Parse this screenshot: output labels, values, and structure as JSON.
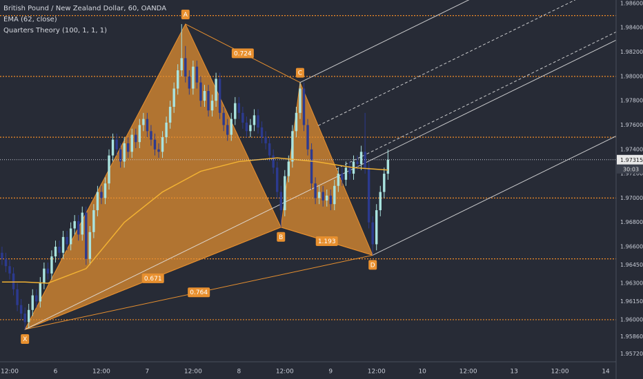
{
  "chart_data": {
    "type": "candlestick",
    "title": "British Pound / New Zealand Dollar, 60, OANDA",
    "indicators": [
      "EMA (62, close)",
      "Quarters Theory (100, 1, 1, 1)"
    ],
    "up_color": "#a9e3df",
    "down_color": "#2c3a8f",
    "background": "#272b36",
    "xlim": [
      -2.53,
      158.7
    ],
    "ylim": [
      1.95654,
      1.98628
    ],
    "xticks": [
      {
        "value": 0,
        "label": "12:00"
      },
      {
        "value": 12,
        "label": "6"
      },
      {
        "value": 24,
        "label": "12:00"
      },
      {
        "value": 36,
        "label": "7"
      },
      {
        "value": 48,
        "label": "12:00"
      },
      {
        "value": 60,
        "label": "8"
      },
      {
        "value": 72,
        "label": "12:00"
      },
      {
        "value": 84,
        "label": "9"
      },
      {
        "value": 96,
        "label": "12:00"
      },
      {
        "value": 108,
        "label": "10"
      },
      {
        "value": 120,
        "label": "12:00"
      },
      {
        "value": 132,
        "label": "13"
      },
      {
        "value": 144,
        "label": "12:00"
      },
      {
        "value": 156,
        "label": "14"
      }
    ],
    "yticks": [
      {
        "value": 1.986,
        "label": "1.98600"
      },
      {
        "value": 1.984,
        "label": "1.98400"
      },
      {
        "value": 1.982,
        "label": "1.98200"
      },
      {
        "value": 1.98,
        "label": "1.98000"
      },
      {
        "value": 1.978,
        "label": "1.97800"
      },
      {
        "value": 1.976,
        "label": "1.97600"
      },
      {
        "value": 1.974,
        "label": "1.97400"
      },
      {
        "value": 1.972,
        "label": "1.97200"
      },
      {
        "value": 1.97,
        "label": "1.97000"
      },
      {
        "value": 1.968,
        "label": "1.96800"
      },
      {
        "value": 1.966,
        "label": "1.96600"
      },
      {
        "value": 1.9645,
        "label": "1.96450"
      },
      {
        "value": 1.963,
        "label": "1.96300"
      },
      {
        "value": 1.9615,
        "label": "1.96150"
      },
      {
        "value": 1.96,
        "label": "1.96000"
      },
      {
        "value": 1.9586,
        "label": "1.95860"
      },
      {
        "value": 1.9572,
        "label": "1.95720"
      }
    ],
    "x": [
      -2,
      -1,
      0,
      1,
      2,
      3,
      4,
      5,
      6,
      7,
      8,
      9,
      10,
      11,
      12,
      13,
      14,
      15,
      16,
      17,
      18,
      19,
      20,
      21,
      22,
      23,
      24,
      25,
      26,
      27,
      28,
      29,
      30,
      31,
      32,
      33,
      34,
      35,
      36,
      37,
      38,
      39,
      40,
      41,
      42,
      43,
      44,
      45,
      46,
      47,
      48,
      49,
      50,
      51,
      52,
      53,
      54,
      55,
      56,
      57,
      58,
      59,
      60,
      61,
      62,
      63,
      64,
      65,
      66,
      67,
      68,
      69,
      70,
      71,
      72,
      73,
      74,
      75,
      76,
      77,
      78,
      79,
      80,
      81,
      82,
      83,
      84,
      85,
      86,
      87,
      88,
      89,
      90,
      91,
      92,
      93,
      94,
      95,
      96,
      97,
      98,
      99
    ],
    "open": [
      1.9655,
      1.965,
      1.9644,
      1.9638,
      1.9625,
      1.9612,
      1.9605,
      1.9598,
      1.9608,
      1.962,
      1.9615,
      1.963,
      1.9642,
      1.9638,
      1.9652,
      1.966,
      1.9655,
      1.9668,
      1.9662,
      1.9675,
      1.9681,
      1.967,
      1.9688,
      1.965,
      1.9672,
      1.969,
      1.9705,
      1.97,
      1.9712,
      1.9735,
      1.9748,
      1.974,
      1.973,
      1.9745,
      1.9738,
      1.9752,
      1.9746,
      1.976,
      1.9765,
      1.9755,
      1.9748,
      1.974,
      1.9738,
      1.975,
      1.9762,
      1.9775,
      1.979,
      1.9805,
      1.9815,
      1.98,
      1.979,
      1.9808,
      1.9795,
      1.978,
      1.9788,
      1.9772,
      1.978,
      1.9798,
      1.977,
      1.976,
      1.9752,
      1.9765,
      1.9778,
      1.977,
      1.9762,
      1.9755,
      1.976,
      1.9768,
      1.9758,
      1.975,
      1.9745,
      1.9735,
      1.9725,
      1.9705,
      1.969,
      1.9718,
      1.973,
      1.9755,
      1.977,
      1.979,
      1.976,
      1.974,
      1.9712,
      1.97,
      1.9705,
      1.9698,
      1.9702,
      1.9695,
      1.971,
      1.972,
      1.9715,
      1.9725,
      1.972,
      1.973,
      1.9728,
      1.9738,
      1.9725,
      1.968,
      1.9662,
      1.969,
      1.9705,
      1.972
    ],
    "high": [
      1.966,
      1.9655,
      1.9649,
      1.9643,
      1.963,
      1.9617,
      1.961,
      1.9613,
      1.9625,
      1.9625,
      1.9635,
      1.9647,
      1.9647,
      1.9657,
      1.9665,
      1.9665,
      1.9673,
      1.9673,
      1.968,
      1.9686,
      1.9686,
      1.9693,
      1.9693,
      1.9677,
      1.9695,
      1.971,
      1.971,
      1.9717,
      1.974,
      1.9753,
      1.9753,
      1.9745,
      1.975,
      1.975,
      1.9757,
      1.9757,
      1.9765,
      1.977,
      1.977,
      1.976,
      1.9753,
      1.9745,
      1.9755,
      1.9767,
      1.978,
      1.9795,
      1.981,
      1.9843,
      1.9825,
      1.9805,
      1.9813,
      1.9813,
      1.98,
      1.9793,
      1.9793,
      1.9785,
      1.9803,
      1.9803,
      1.9775,
      1.9765,
      1.977,
      1.9783,
      1.9783,
      1.9775,
      1.9767,
      1.9765,
      1.9773,
      1.9773,
      1.9763,
      1.9755,
      1.975,
      1.974,
      1.973,
      1.971,
      1.9723,
      1.9735,
      1.976,
      1.9775,
      1.9795,
      1.9795,
      1.9765,
      1.9745,
      1.9717,
      1.971,
      1.971,
      1.9707,
      1.9707,
      1.9715,
      1.9725,
      1.9725,
      1.973,
      1.973,
      1.9735,
      1.9735,
      1.9743,
      1.977,
      1.973,
      1.9685,
      1.9695,
      1.971,
      1.9725,
      1.974
    ],
    "low": [
      1.9645,
      1.9639,
      1.9633,
      1.962,
      1.9607,
      1.96,
      1.9592,
      1.9593,
      1.9603,
      1.961,
      1.961,
      1.9625,
      1.9633,
      1.9633,
      1.9647,
      1.965,
      1.965,
      1.9657,
      1.9657,
      1.967,
      1.9665,
      1.9665,
      1.9645,
      1.9645,
      1.9667,
      1.9685,
      1.9695,
      1.9695,
      1.9707,
      1.973,
      1.9735,
      1.9725,
      1.9725,
      1.9733,
      1.9733,
      1.9741,
      1.9741,
      1.9755,
      1.975,
      1.9743,
      1.9735,
      1.9733,
      1.9733,
      1.9745,
      1.9757,
      1.977,
      1.9785,
      1.98,
      1.9795,
      1.9785,
      1.9785,
      1.979,
      1.9775,
      1.9775,
      1.9767,
      1.9767,
      1.9775,
      1.9765,
      1.9755,
      1.9747,
      1.9747,
      1.976,
      1.9765,
      1.9757,
      1.975,
      1.975,
      1.9755,
      1.9753,
      1.9745,
      1.974,
      1.973,
      1.972,
      1.97,
      1.9676,
      1.9685,
      1.9713,
      1.9725,
      1.975,
      1.9765,
      1.9755,
      1.9735,
      1.9707,
      1.9695,
      1.9695,
      1.9693,
      1.9693,
      1.969,
      1.969,
      1.9705,
      1.971,
      1.971,
      1.9715,
      1.9715,
      1.9723,
      1.9723,
      1.972,
      1.9675,
      1.9653,
      1.9657,
      1.9685,
      1.97,
      1.9715
    ],
    "close": [
      1.965,
      1.9644,
      1.9638,
      1.9625,
      1.9612,
      1.9605,
      1.9598,
      1.9608,
      1.962,
      1.9615,
      1.963,
      1.9642,
      1.9638,
      1.9652,
      1.966,
      1.9655,
      1.9668,
      1.9662,
      1.9675,
      1.9681,
      1.967,
      1.9688,
      1.965,
      1.9672,
      1.969,
      1.9705,
      1.97,
      1.9712,
      1.9735,
      1.9748,
      1.974,
      1.973,
      1.9745,
      1.9738,
      1.9752,
      1.9746,
      1.976,
      1.9765,
      1.9755,
      1.9748,
      1.974,
      1.9738,
      1.975,
      1.9762,
      1.9775,
      1.979,
      1.9805,
      1.9815,
      1.98,
      1.979,
      1.9808,
      1.9795,
      1.978,
      1.9788,
      1.9772,
      1.978,
      1.9798,
      1.977,
      1.976,
      1.9752,
      1.9765,
      1.9778,
      1.977,
      1.9762,
      1.9755,
      1.976,
      1.9768,
      1.9758,
      1.975,
      1.9745,
      1.9735,
      1.9725,
      1.9705,
      1.969,
      1.9718,
      1.973,
      1.9755,
      1.977,
      1.979,
      1.976,
      1.974,
      1.9712,
      1.97,
      1.9705,
      1.9698,
      1.9702,
      1.9695,
      1.971,
      1.972,
      1.9715,
      1.9725,
      1.972,
      1.973,
      1.9728,
      1.9738,
      1.9725,
      1.968,
      1.9662,
      1.969,
      1.9705,
      1.972,
      1.97315
    ],
    "ema": {
      "color": "#f2b233",
      "x": [
        -2,
        4,
        10,
        20,
        30,
        40,
        50,
        60,
        70,
        80,
        90,
        99
      ],
      "values": [
        1.9631,
        1.9631,
        1.963,
        1.9642,
        1.968,
        1.9705,
        1.9722,
        1.973,
        1.9733,
        1.973,
        1.9725,
        1.9723
      ]
    },
    "levels": {
      "color": "#f28c28",
      "values": [
        1.985,
        1.98,
        1.975,
        1.97,
        1.965,
        1.96
      ]
    },
    "pattern": {
      "color": "#e8902f",
      "points": [
        {
          "label": "X",
          "x": 4,
          "y": 1.9592
        },
        {
          "label": "A",
          "x": 46,
          "y": 1.9843
        },
        {
          "label": "B",
          "x": 71,
          "y": 1.9676
        },
        {
          "label": "C",
          "x": 76,
          "y": 1.9795
        },
        {
          "label": "D",
          "x": 95,
          "y": 1.9653
        }
      ],
      "ratios": [
        {
          "value": 0.724,
          "between": [
            "A",
            "C"
          ]
        },
        {
          "value": 1.193,
          "between": [
            "B",
            "D"
          ]
        },
        {
          "value": 0.671,
          "between": [
            "X",
            "B"
          ]
        },
        {
          "value": 0.764,
          "between": [
            "X",
            "D"
          ]
        }
      ]
    },
    "last_price": {
      "value": 1.97315,
      "label": "1.97315"
    },
    "countdown": "30:03"
  }
}
